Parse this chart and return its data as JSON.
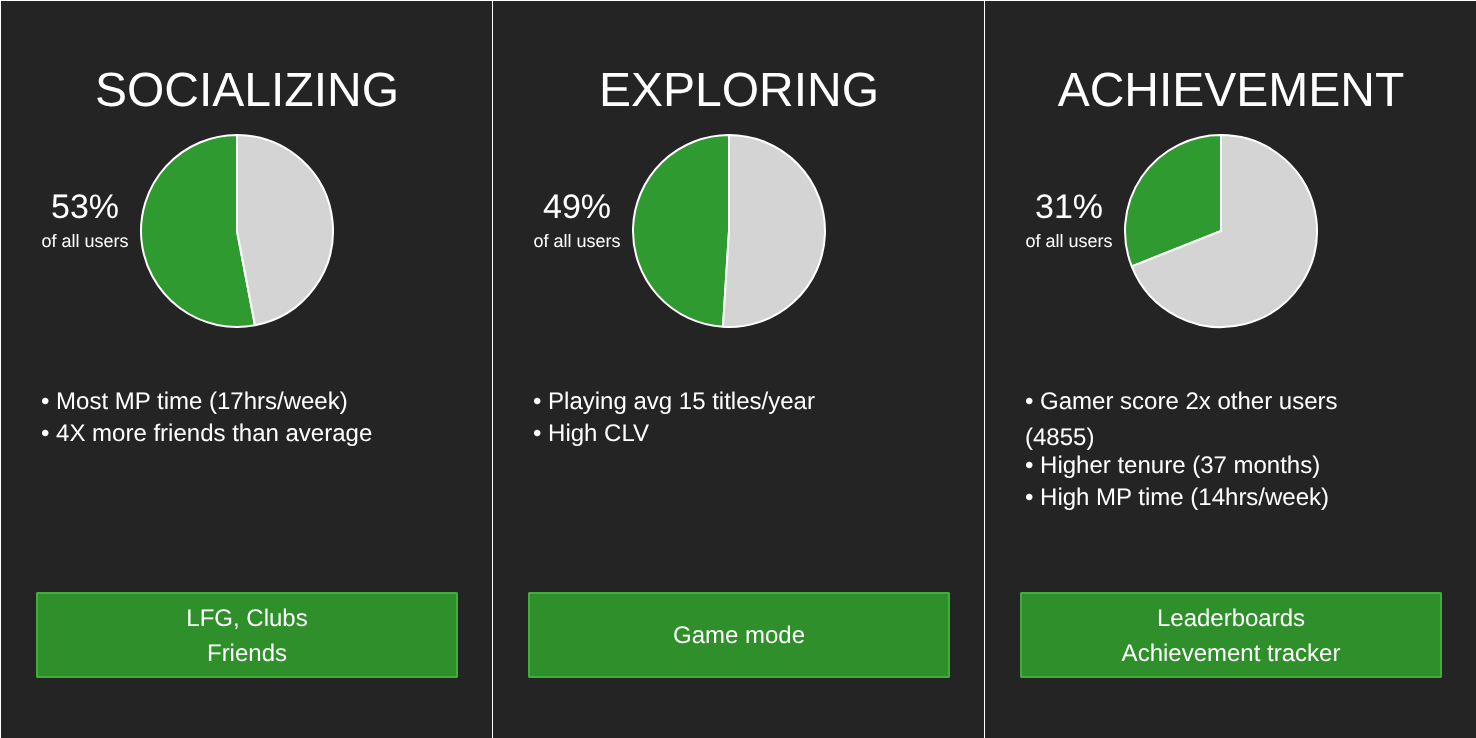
{
  "chart_data": [
    {
      "type": "pie",
      "title": "SOCIALIZING",
      "categories": [
        null,
        null
      ],
      "values": [
        53,
        47
      ],
      "colors": [
        "#2f9a2f",
        "#d4d4d4"
      ],
      "value_labels": [
        "53%",
        null
      ],
      "annotations": [
        "of all users",
        "• Most MP time (17hrs/week)",
        "• 4X more friends than average",
        "LFG, Clubs\nFriends"
      ]
    },
    {
      "type": "pie",
      "title": "EXPLORING",
      "categories": [
        null,
        null
      ],
      "values": [
        49,
        51
      ],
      "colors": [
        "#2f9a2f",
        "#d4d4d4"
      ],
      "value_labels": [
        "49%",
        null
      ],
      "annotations": [
        "of all users",
        "• Playing avg 15 titles/year",
        "• High CLV",
        "Game mode"
      ]
    },
    {
      "type": "pie",
      "title": "ACHIEVEMENT",
      "categories": [
        null,
        null
      ],
      "values": [
        31,
        69
      ],
      "colors": [
        "#2f9a2f",
        "#d4d4d4"
      ],
      "value_labels": [
        "31%",
        null
      ],
      "annotations": [
        "of all users",
        "• Gamer score 2x other users\n  (4855)",
        "• Higher tenure (37 months)",
        "• High MP time (14hrs/week)",
        "Leaderboards\nAchievement tracker"
      ]
    }
  ]
}
